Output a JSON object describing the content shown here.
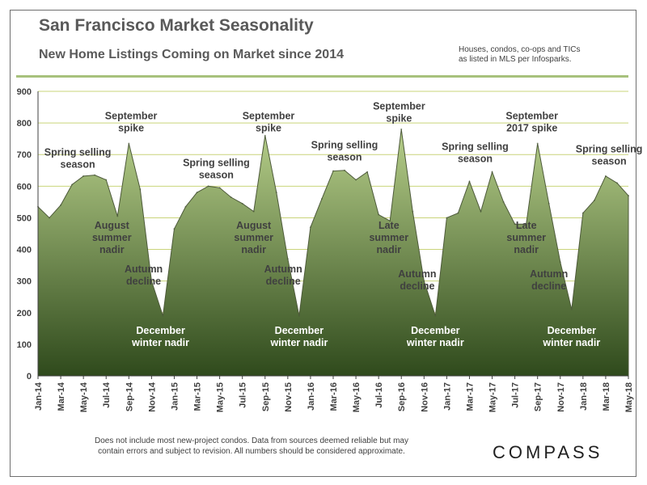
{
  "header": {
    "title": "San Francisco Market Seasonality",
    "subtitle": "New Home Listings Coming on Market since 2014",
    "source_note_line1": "Houses, condos, co-ops and TICs",
    "source_note_line2": "as listed in MLS per Infosparks."
  },
  "footer": {
    "disclaimer_line1": "Does not include most new-project condos. Data from sources deemed reliable but may",
    "disclaimer_line2": "contain errors and subject to revision.  All numbers should be considered approximate.",
    "logo": "COMPASS"
  },
  "colors": {
    "area_top": "#b7cf8a",
    "area_bottom": "#2f4a1c",
    "outline": "#4d5a3a",
    "grid": "#c9d47a",
    "frame": "#6f6f6f"
  },
  "chart_data": {
    "type": "area",
    "title": "",
    "xlabel": "",
    "ylabel": "",
    "ylim": [
      0,
      900
    ],
    "yticks": [
      0,
      100,
      200,
      300,
      400,
      500,
      600,
      700,
      800,
      900
    ],
    "grid": true,
    "x_tick_labels": [
      "Jan-14",
      "Mar-14",
      "May-14",
      "Jul-14",
      "Sep-14",
      "Nov-14",
      "Jan-15",
      "Mar-15",
      "May-15",
      "Jul-15",
      "Sep-15",
      "Nov-15",
      "Jan-16",
      "Mar-16",
      "May-16",
      "Jul-16",
      "Sep-16",
      "Nov-16",
      "Jan-17",
      "Mar-17",
      "May-17",
      "Jul-17",
      "Sep-17",
      "Nov-17",
      "Jan-18",
      "Mar-18",
      "May-18"
    ],
    "x": [
      "Jan-14",
      "Feb-14",
      "Mar-14",
      "Apr-14",
      "May-14",
      "Jun-14",
      "Jul-14",
      "Aug-14",
      "Sep-14",
      "Oct-14",
      "Nov-14",
      "Dec-14",
      "Jan-15",
      "Feb-15",
      "Mar-15",
      "Apr-15",
      "May-15",
      "Jun-15",
      "Jul-15",
      "Aug-15",
      "Sep-15",
      "Oct-15",
      "Nov-15",
      "Dec-15",
      "Jan-16",
      "Feb-16",
      "Mar-16",
      "Apr-16",
      "May-16",
      "Jun-16",
      "Jul-16",
      "Aug-16",
      "Sep-16",
      "Oct-16",
      "Nov-16",
      "Dec-16",
      "Jan-17",
      "Feb-17",
      "Mar-17",
      "Apr-17",
      "May-17",
      "Jun-17",
      "Jul-17",
      "Aug-17",
      "Sep-17",
      "Oct-17",
      "Nov-17",
      "Dec-17",
      "Jan-18",
      "Feb-18",
      "Mar-18",
      "Apr-18",
      "May-18"
    ],
    "series": [
      {
        "values": [
          535,
          500,
          540,
          605,
          632,
          635,
          620,
          505,
          735,
          590,
          300,
          190,
          465,
          535,
          580,
          600,
          595,
          565,
          545,
          520,
          760,
          580,
          370,
          190,
          470,
          560,
          648,
          650,
          620,
          645,
          510,
          490,
          780,
          520,
          300,
          190,
          500,
          515,
          615,
          520,
          645,
          550,
          480,
          480,
          735,
          545,
          360,
          210,
          515,
          555,
          632,
          610,
          570
        ]
      }
    ],
    "annotations": [
      {
        "lines": [
          "Spring selling",
          "season"
        ],
        "month": 3.5,
        "value": 697,
        "dark": false
      },
      {
        "lines": [
          "September",
          "spike"
        ],
        "month": 8.2,
        "value": 812,
        "dark": false
      },
      {
        "lines": [
          "August",
          "summer",
          "nadir"
        ],
        "month": 6.5,
        "value": 465,
        "dark": false
      },
      {
        "lines": [
          "Autumn",
          "decline"
        ],
        "month": 9.3,
        "value": 327,
        "dark": false
      },
      {
        "lines": [
          "December",
          "winter nadir"
        ],
        "month": 10.8,
        "value": 133,
        "dark": true
      },
      {
        "lines": [
          "Spring selling",
          "season"
        ],
        "month": 15.7,
        "value": 664,
        "dark": false
      },
      {
        "lines": [
          "September",
          "spike"
        ],
        "month": 20.3,
        "value": 812,
        "dark": false
      },
      {
        "lines": [
          "August",
          "summer",
          "nadir"
        ],
        "month": 19.0,
        "value": 465,
        "dark": false
      },
      {
        "lines": [
          "Autumn",
          "decline"
        ],
        "month": 21.6,
        "value": 327,
        "dark": false
      },
      {
        "lines": [
          "December",
          "winter nadir"
        ],
        "month": 23.0,
        "value": 133,
        "dark": true
      },
      {
        "lines": [
          "Spring selling",
          "season"
        ],
        "month": 27.0,
        "value": 720,
        "dark": false
      },
      {
        "lines": [
          "September",
          "spike"
        ],
        "month": 31.8,
        "value": 842,
        "dark": false
      },
      {
        "lines": [
          "Late",
          "summer",
          "nadir"
        ],
        "month": 30.9,
        "value": 465,
        "dark": false
      },
      {
        "lines": [
          "Autumn",
          "decline"
        ],
        "month": 33.4,
        "value": 312,
        "dark": false
      },
      {
        "lines": [
          "December",
          "winter nadir"
        ],
        "month": 35.0,
        "value": 133,
        "dark": true
      },
      {
        "lines": [
          "Spring selling",
          "season"
        ],
        "month": 38.5,
        "value": 714,
        "dark": false
      },
      {
        "lines": [
          "September",
          "2017 spike"
        ],
        "month": 43.5,
        "value": 812,
        "dark": false
      },
      {
        "lines": [
          "Late",
          "summer",
          "nadir"
        ],
        "month": 43.0,
        "value": 465,
        "dark": false
      },
      {
        "lines": [
          "Autumn",
          "decline"
        ],
        "month": 45.0,
        "value": 312,
        "dark": false
      },
      {
        "lines": [
          "December",
          "winter nadir"
        ],
        "month": 47.0,
        "value": 133,
        "dark": true
      },
      {
        "lines": [
          "Spring selling",
          "season"
        ],
        "month": 50.3,
        "value": 707,
        "dark": false
      }
    ]
  }
}
